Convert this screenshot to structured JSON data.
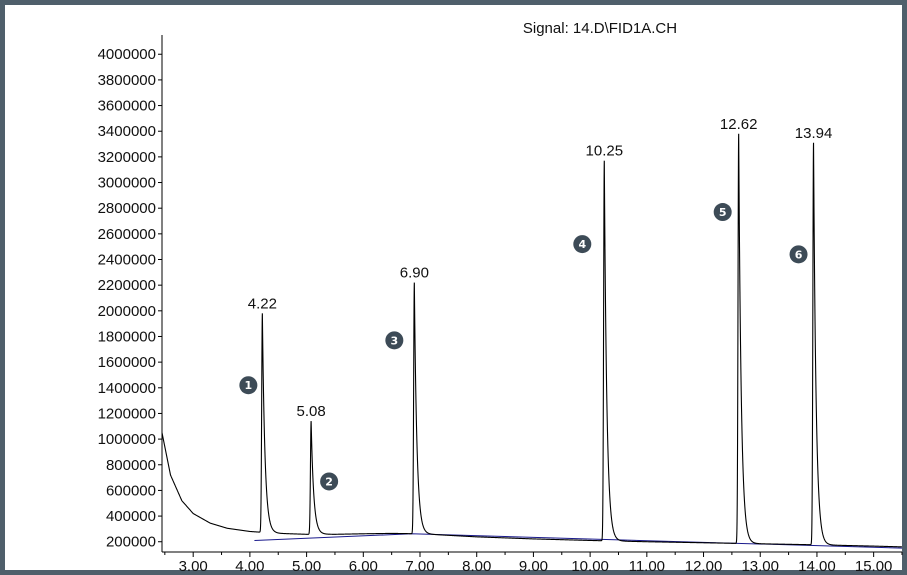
{
  "chart_data": {
    "type": "line",
    "title": "Signal: 14.D\\FID1A.CH",
    "xlabel": "",
    "ylabel": "",
    "xlim": [
      2.45,
      15.5
    ],
    "ylim": [
      120000,
      4150000
    ],
    "y_ticks": [
      "200000",
      "400000",
      "600000",
      "800000",
      "1000000",
      "1200000",
      "1400000",
      "1600000",
      "1800000",
      "2000000",
      "2200000",
      "2400000",
      "2600000",
      "2800000",
      "3000000",
      "3200000",
      "3400000",
      "3600000",
      "3800000",
      "4000000"
    ],
    "x_ticks": [
      "3.00",
      "4.00",
      "5.00",
      "6.00",
      "7.00",
      "8.00",
      "9.00",
      "10.00",
      "11.00",
      "12.00",
      "13.00",
      "14.00",
      "15.00"
    ],
    "baseline_points": [
      [
        2.45,
        1050000
      ],
      [
        2.6,
        720000
      ],
      [
        2.8,
        520000
      ],
      [
        3.0,
        420000
      ],
      [
        3.3,
        345000
      ],
      [
        3.6,
        305000
      ],
      [
        4.0,
        280000
      ],
      [
        4.5,
        265000
      ],
      [
        5.0,
        258000
      ],
      [
        5.5,
        258000
      ],
      [
        6.0,
        262000
      ],
      [
        6.5,
        265000
      ],
      [
        7.0,
        262000
      ],
      [
        7.5,
        250000
      ],
      [
        8.0,
        238000
      ],
      [
        9.0,
        222000
      ],
      [
        10.0,
        210000
      ],
      [
        11.0,
        200000
      ],
      [
        12.0,
        192000
      ],
      [
        13.0,
        184000
      ],
      [
        14.0,
        176000
      ],
      [
        15.0,
        166000
      ],
      [
        15.5,
        160000
      ]
    ],
    "integration_baseline": [
      [
        4.08,
        210000
      ],
      [
        6.85,
        262000
      ],
      [
        15.5,
        150000
      ]
    ],
    "peaks": [
      {
        "number": "1",
        "rt": "4.22",
        "height": 1980000
      },
      {
        "number": "2",
        "rt": "5.08",
        "height": 1140000
      },
      {
        "number": "3",
        "rt": "6.90",
        "height": 2220000
      },
      {
        "number": "4",
        "rt": "10.25",
        "height": 3170000
      },
      {
        "number": "5",
        "rt": "12.62",
        "height": 3380000
      },
      {
        "number": "6",
        "rt": "13.94",
        "height": 3310000
      }
    ],
    "colors": {
      "trace": "#000000",
      "integration_baseline": "#1a1a8c",
      "marker": "#3d4b57",
      "frame": "#4f5f6b"
    }
  }
}
